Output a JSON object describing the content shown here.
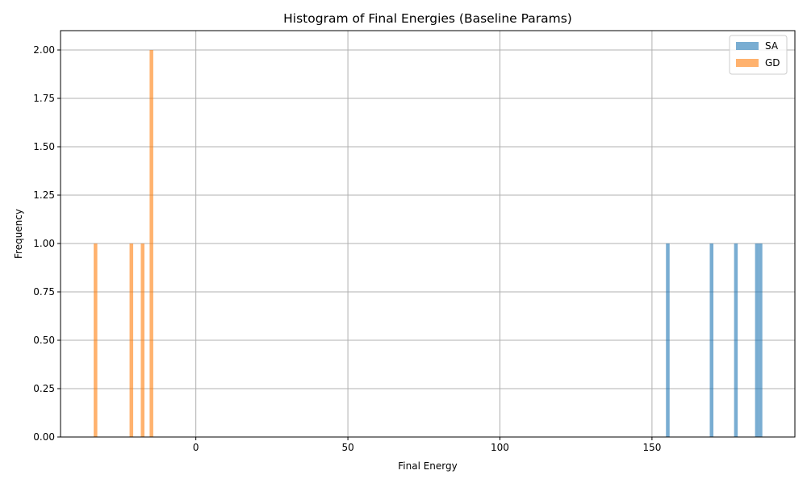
{
  "chart_data": {
    "type": "bar",
    "title": "Histogram of Final Energies (Baseline Params)",
    "xlabel": "Final Energy",
    "ylabel": "Frequency",
    "xlim": [
      -44.5,
      197
    ],
    "ylim": [
      0,
      2.1
    ],
    "x_ticks": [
      0,
      50,
      100,
      150
    ],
    "y_ticks": [
      "0.00",
      "0.25",
      "0.50",
      "0.75",
      "1.00",
      "1.25",
      "1.50",
      "1.75",
      "2.00"
    ],
    "grid": true,
    "legend_position": "top-right",
    "bin_width": 1.2,
    "series": [
      {
        "name": "SA",
        "color": "#1f77b4",
        "alpha": 0.6,
        "bins": [
          {
            "x": 155.2,
            "count": 1
          },
          {
            "x": 169.6,
            "count": 1
          },
          {
            "x": 177.6,
            "count": 1
          },
          {
            "x": 184.5,
            "count": 1
          },
          {
            "x": 185.7,
            "count": 1
          }
        ]
      },
      {
        "name": "GD",
        "color": "#ff7f0e",
        "alpha": 0.6,
        "bins": [
          {
            "x": -33.0,
            "count": 1
          },
          {
            "x": -21.2,
            "count": 1
          },
          {
            "x": -17.5,
            "count": 1
          },
          {
            "x": -14.6,
            "count": 2
          }
        ]
      }
    ]
  }
}
